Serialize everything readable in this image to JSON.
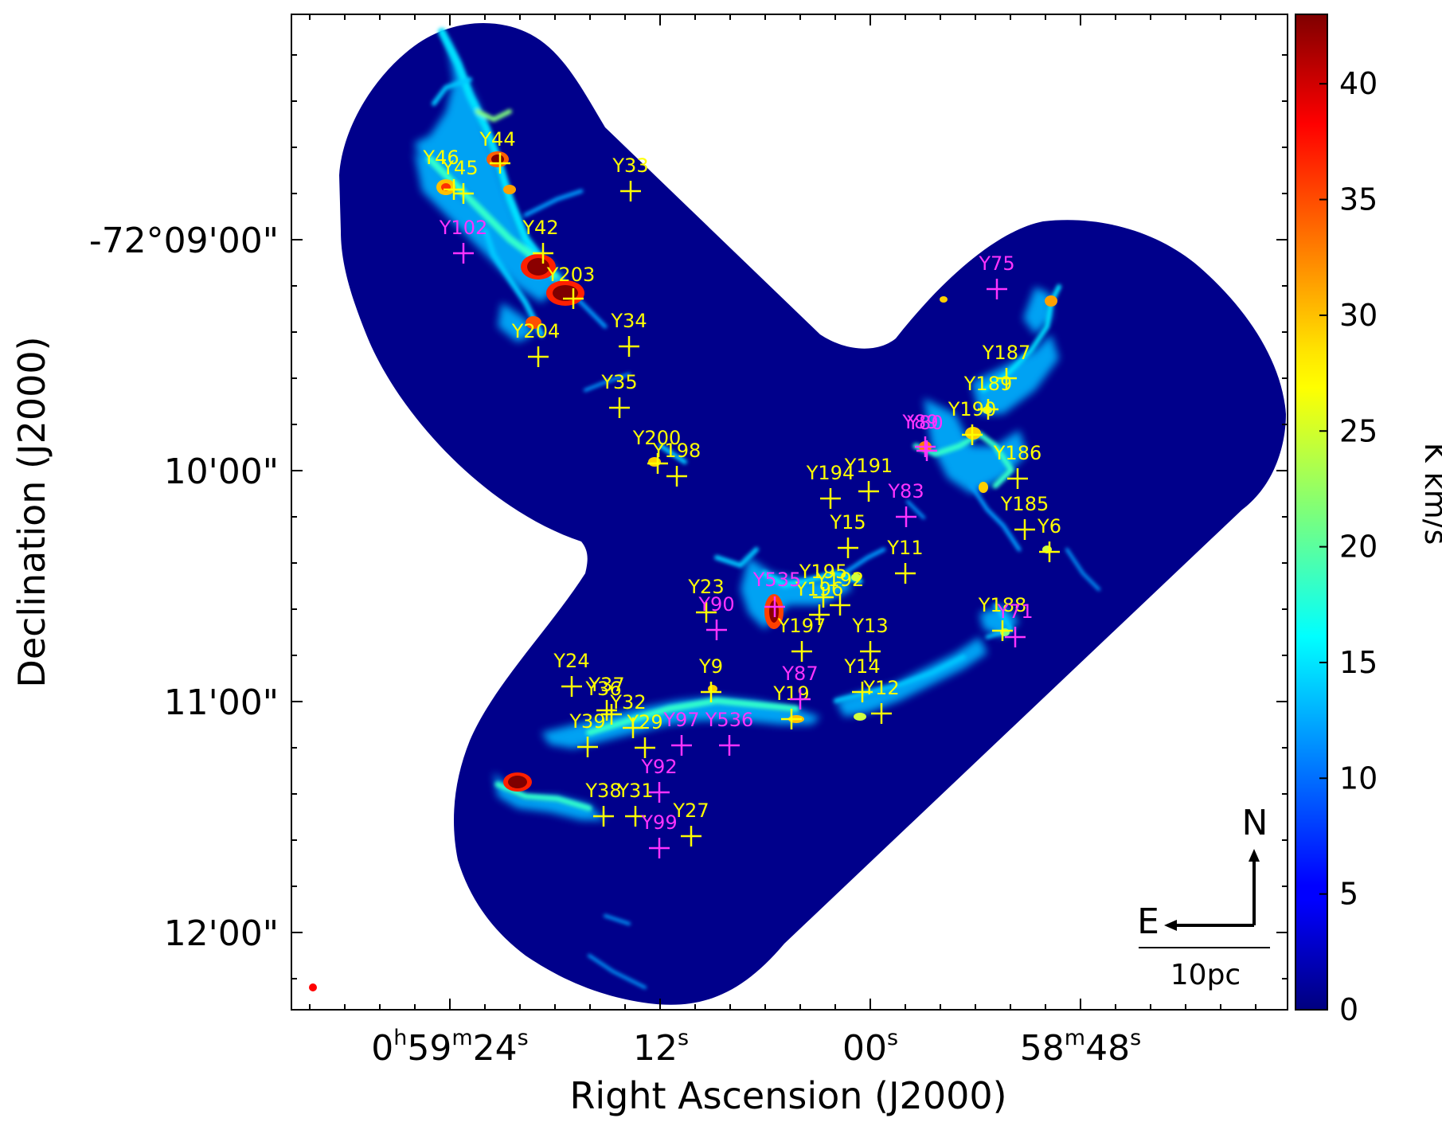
{
  "chart_data": {
    "type": "heatmap",
    "title": "",
    "xlabel": "Right Ascension (J2000)",
    "ylabel": "Declination (J2000)",
    "x_ticks": [
      {
        "h": "0",
        "m": "59",
        "s": "24"
      },
      {
        "s": "12"
      },
      {
        "s": "00"
      },
      {
        "m": "58",
        "s": "48"
      }
    ],
    "y_ticks": [
      "-72°09'00\"",
      "10'00\"",
      "11'00\"",
      "12'00\""
    ],
    "colorbar": {
      "label": "K km/s",
      "range": [
        0,
        43
      ],
      "ticks": [
        "0",
        "5",
        "10",
        "15",
        "20",
        "25",
        "30",
        "35",
        "40"
      ],
      "colormap": "jet"
    },
    "compass": {
      "north": "N",
      "east": "E"
    },
    "scalebar": {
      "label": "10pc"
    },
    "beam_color": "#ff0000",
    "colors": {
      "yellow_sources": "#ffff00",
      "magenta_sources": "#ff33ff",
      "background": "#00008b"
    },
    "sources_yellow": [
      "Y46",
      "Y45",
      "Y44",
      "Y33",
      "Y42",
      "Y203",
      "Y204",
      "Y34",
      "Y35",
      "Y200",
      "Y198",
      "Y194",
      "Y191",
      "Y187",
      "Y189",
      "Y190",
      "Y186",
      "Y185",
      "Y6",
      "Y15",
      "Y11",
      "Y23",
      "Y195",
      "Y192",
      "Y196",
      "Y197",
      "Y13",
      "Y188",
      "Y24",
      "Y37",
      "Y36",
      "Y32",
      "Y9",
      "Y14",
      "Y12",
      "Y19",
      "Y39",
      "Y29",
      "Y38",
      "Y31",
      "Y27"
    ],
    "sources_magenta": [
      "Y102",
      "Y75",
      "Y80",
      "Y89",
      "Y83",
      "Y535",
      "Y90",
      "Y71",
      "Y87",
      "Y97",
      "Y536",
      "Y92",
      "Y99"
    ]
  }
}
